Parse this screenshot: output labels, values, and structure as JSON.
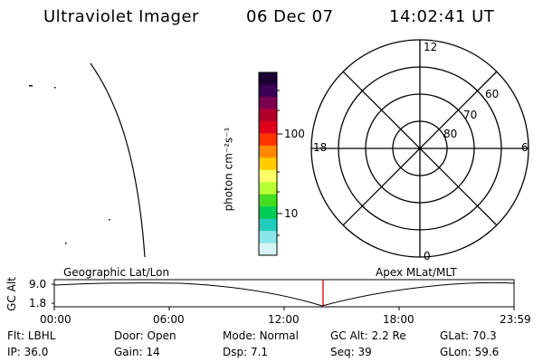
{
  "header": {
    "title": "Ultraviolet Imager",
    "date": "06 Dec 07",
    "time": "14:02:41 UT"
  },
  "colorbar": {
    "unit_label": "photon cm⁻²s⁻¹",
    "ticks": [
      "100",
      "10"
    ],
    "colors": [
      "#1a0033",
      "#3a0056",
      "#7a0050",
      "#b0002a",
      "#e0001a",
      "#ff3300",
      "#ff8800",
      "#ffcc00",
      "#ffff66",
      "#b8ff33",
      "#44dd22",
      "#00cc55",
      "#22ccbb",
      "#88e6e6",
      "#d8f4f4"
    ]
  },
  "polar_plot": {
    "mlt_labels": {
      "top": "12",
      "right": "6",
      "bottom": "0",
      "left": "18"
    },
    "lat_labels": [
      "60",
      "70",
      "80"
    ],
    "ring_latitudes": [
      50,
      60,
      70,
      80
    ]
  },
  "timeline": {
    "left_label": "Geographic Lat/Lon",
    "right_label": "Apex MLat/MLT",
    "y_axis_label": "GC Alt",
    "y_ticks": [
      "9.0",
      "1.8"
    ],
    "x_ticks": [
      "00:00",
      "06:00",
      "12:00",
      "18:00",
      "23:59"
    ],
    "marker_color": "#cc0000"
  },
  "status": {
    "row1": [
      {
        "label": "Flt:",
        "value": "LBHL"
      },
      {
        "label": "Door:",
        "value": "Open"
      },
      {
        "label": "Mode:",
        "value": "Normal"
      },
      {
        "label": "GC Alt:",
        "value": "2.2 Re"
      },
      {
        "label": "GLat:",
        "value": "70.3"
      }
    ],
    "row2": [
      {
        "label": "IP:",
        "value": "36.0"
      },
      {
        "label": "Gain:",
        "value": "14"
      },
      {
        "label": "Dsp:",
        "value": "7.1"
      },
      {
        "label": "Seq:",
        "value": "39"
      },
      {
        "label": "GLon:",
        "value": "59.6"
      }
    ]
  }
}
